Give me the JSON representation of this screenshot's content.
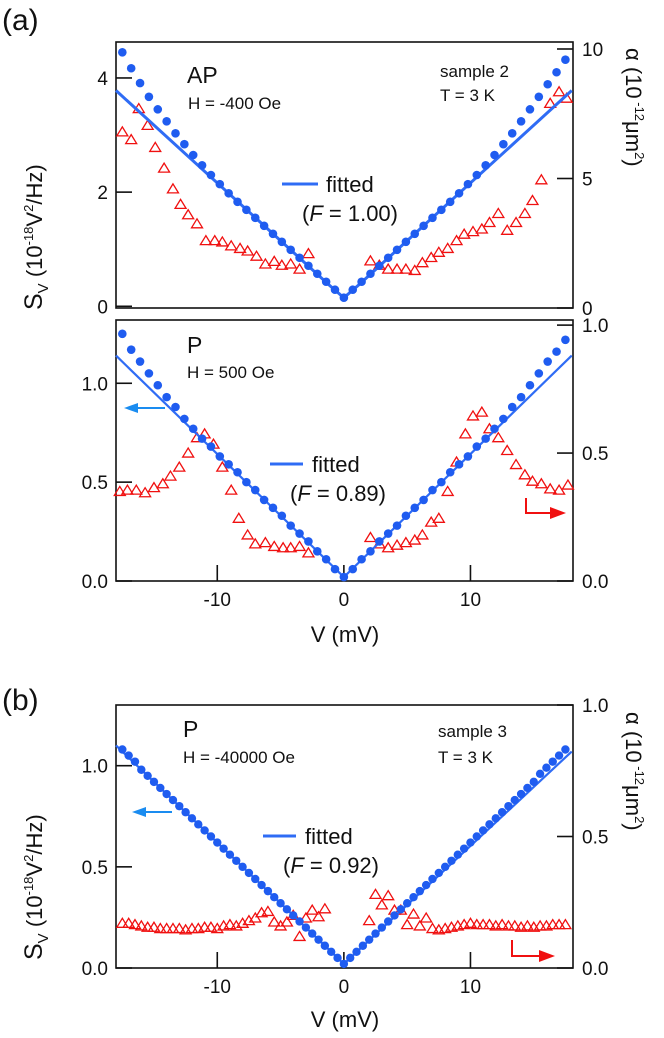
{
  "figure": {
    "tag_a": "(a)",
    "tag_b": "(b)",
    "xlabel": "V  (mV)",
    "ylabel_left": {
      "main": "S",
      "sub": "V",
      "open": "  (10",
      "sup": "-18",
      "mid": "V",
      "sup2": "2",
      "end": "/Hz)"
    },
    "ylabel_right": {
      "main": "α  (10",
      "sup": " -12",
      "mid": "μm",
      "sup2": "2",
      "end": ")"
    }
  },
  "colors": {
    "blue": "#1f5cf0",
    "fit": "#2f6cf5",
    "red": "#f01010",
    "arrow_blue": "#1a8cf0",
    "arrow_red": "#f01010"
  },
  "chart_data": [
    {
      "panel": "a-top",
      "type": "scatter",
      "label": "AP",
      "field": "H = -400 Oe",
      "sample": "sample 2",
      "temperature": "T = 3 K",
      "legend": {
        "label": "fitted",
        "factor_prefix": "(",
        "factor_symbol": "F",
        "factor_value": " = 1.00)"
      },
      "xlim": [
        -18,
        18.1
      ],
      "ylim_left": [
        -0.03,
        4.63
      ],
      "ylim_right": [
        0,
        10.27
      ],
      "yticks_left": [
        0,
        2,
        4
      ],
      "yticklabels_left": [
        "0",
        "2",
        "4"
      ],
      "yticks_right": [
        0,
        5,
        10
      ],
      "yticklabels_right": [
        "0",
        "5",
        "10"
      ],
      "xticks": [],
      "xticklabels": [],
      "blue_x": [
        -17.5,
        -16.8,
        -16.1,
        -15.4,
        -14.7,
        -14.0,
        -13.3,
        -12.6,
        -11.9,
        -11.2,
        -10.5,
        -9.8,
        -9.1,
        -8.4,
        -7.7,
        -7.0,
        -6.3,
        -5.6,
        -4.9,
        -4.2,
        -3.5,
        -2.8,
        -2.1,
        -1.4,
        -0.7,
        0,
        0.7,
        1.4,
        2.1,
        2.8,
        3.5,
        4.2,
        4.9,
        5.6,
        6.3,
        7.0,
        7.7,
        8.4,
        9.1,
        9.8,
        10.5,
        11.2,
        11.9,
        12.6,
        13.3,
        14.0,
        14.7,
        15.4,
        16.1,
        16.8,
        17.5
      ],
      "blue_S": [
        4.45,
        4.17,
        3.91,
        3.67,
        3.45,
        3.24,
        3.03,
        2.84,
        2.65,
        2.47,
        2.3,
        2.14,
        1.98,
        1.83,
        1.69,
        1.55,
        1.41,
        1.27,
        1.13,
        0.99,
        0.85,
        0.71,
        0.57,
        0.43,
        0.29,
        0.15,
        0.29,
        0.43,
        0.57,
        0.71,
        0.85,
        0.99,
        1.13,
        1.27,
        1.41,
        1.55,
        1.69,
        1.83,
        1.98,
        2.14,
        2.3,
        2.47,
        2.65,
        2.84,
        3.03,
        3.24,
        3.45,
        3.67,
        3.89,
        4.1,
        4.32
      ],
      "red_x": [
        -17.5,
        -16.8,
        -16.2,
        -15.5,
        -14.9,
        -14.2,
        -13.5,
        -12.9,
        -12.3,
        -11.6,
        -10.9,
        -10.2,
        -9.6,
        -8.9,
        -8.2,
        -7.6,
        -6.9,
        -6.2,
        -5.5,
        -4.9,
        -4.2,
        -3.5,
        -2.8,
        2.1,
        2.8,
        3.5,
        4.2,
        4.9,
        5.6,
        6.2,
        6.9,
        7.5,
        8.2,
        8.9,
        9.5,
        10.2,
        10.9,
        11.5,
        12.2,
        12.9,
        13.6,
        14.3,
        14.9,
        15.6,
        16.3,
        17.0,
        17.6
      ],
      "red_alpha": [
        6.8,
        6.5,
        7.7,
        7.05,
        6.2,
        5.4,
        4.6,
        4.0,
        3.6,
        3.25,
        2.6,
        2.6,
        2.55,
        2.4,
        2.3,
        2.2,
        2.0,
        1.7,
        1.8,
        1.65,
        1.7,
        1.5,
        2.1,
        1.82,
        1.65,
        1.5,
        1.5,
        1.5,
        1.45,
        1.75,
        1.95,
        2.15,
        2.3,
        2.6,
        2.85,
        2.95,
        3.05,
        3.3,
        3.65,
        3.0,
        3.3,
        3.65,
        4.15,
        4.95,
        7.9,
        8.35,
        8.1
      ],
      "fit_x": [
        -18,
        -1.2,
        0,
        1.2,
        18
      ],
      "fit_S": [
        3.78,
        0.38,
        0.15,
        0.38,
        3.78
      ],
      "arrows": false
    },
    {
      "panel": "a-bottom",
      "type": "scatter",
      "label": "P",
      "field": "H = 500 Oe",
      "legend": {
        "label": "fitted",
        "factor_prefix": "(",
        "factor_symbol": "F",
        "factor_value": " = 0.89)"
      },
      "xlim": [
        -18,
        18.1
      ],
      "ylim_left": [
        0,
        1.32
      ],
      "ylim_right": [
        0,
        1.02
      ],
      "yticks_left": [
        0,
        0.5,
        1.0
      ],
      "yticklabels_left": [
        "0.0",
        "0.5",
        "1.0"
      ],
      "yticks_right": [
        0,
        0.5,
        1.0
      ],
      "yticklabels_right": [
        "0.0",
        "0.5",
        "1.0"
      ],
      "xticks": [
        -10,
        0,
        10
      ],
      "xticklabels": [
        "-10",
        "0",
        "10"
      ],
      "blue_x": [
        -17.5,
        -16.8,
        -16.1,
        -15.4,
        -14.7,
        -14.0,
        -13.3,
        -12.6,
        -11.9,
        -11.2,
        -10.5,
        -9.8,
        -9.1,
        -8.4,
        -7.7,
        -7.0,
        -6.3,
        -5.6,
        -4.9,
        -4.2,
        -3.5,
        -2.8,
        -2.1,
        -1.4,
        -0.7,
        0,
        0.7,
        1.4,
        2.1,
        2.8,
        3.5,
        4.2,
        4.9,
        5.6,
        6.3,
        7.0,
        7.7,
        8.4,
        9.1,
        9.8,
        10.5,
        11.2,
        11.9,
        12.6,
        13.3,
        14.0,
        14.7,
        15.4,
        16.1,
        16.8,
        17.5
      ],
      "blue_S": [
        1.25,
        1.17,
        1.11,
        1.05,
        0.99,
        0.93,
        0.88,
        0.82,
        0.77,
        0.72,
        0.68,
        0.63,
        0.59,
        0.55,
        0.5,
        0.46,
        0.41,
        0.37,
        0.33,
        0.28,
        0.24,
        0.2,
        0.15,
        0.11,
        0.06,
        0.02,
        0.06,
        0.11,
        0.15,
        0.2,
        0.24,
        0.28,
        0.33,
        0.37,
        0.41,
        0.46,
        0.5,
        0.55,
        0.59,
        0.63,
        0.68,
        0.72,
        0.77,
        0.82,
        0.88,
        0.93,
        0.99,
        1.05,
        1.11,
        1.16,
        1.22
      ],
      "red_x": [
        -17.7,
        -17.1,
        -16.4,
        -15.7,
        -15.0,
        -14.3,
        -13.7,
        -13.0,
        -12.3,
        -11.6,
        -11.0,
        -10.3,
        -9.6,
        -8.9,
        -8.3,
        -7.6,
        -7.0,
        -6.2,
        -5.5,
        -4.8,
        -4.2,
        -3.5,
        -2.8,
        2.1,
        2.8,
        3.5,
        4.2,
        4.9,
        5.6,
        6.2,
        6.9,
        7.5,
        8.2,
        8.9,
        9.6,
        10.2,
        10.9,
        11.5,
        12.2,
        12.9,
        13.6,
        14.3,
        14.9,
        15.6,
        16.3,
        17.0,
        17.7
      ],
      "red_alpha": [
        0.35,
        0.355,
        0.355,
        0.345,
        0.365,
        0.38,
        0.41,
        0.445,
        0.5,
        0.56,
        0.575,
        0.535,
        0.445,
        0.355,
        0.245,
        0.18,
        0.145,
        0.15,
        0.135,
        0.13,
        0.13,
        0.135,
        0.11,
        0.17,
        0.145,
        0.13,
        0.14,
        0.15,
        0.16,
        0.18,
        0.23,
        0.245,
        0.35,
        0.465,
        0.575,
        0.645,
        0.66,
        0.595,
        0.56,
        0.51,
        0.455,
        0.415,
        0.39,
        0.38,
        0.36,
        0.355,
        0.375
      ],
      "fit_x": [
        -18,
        0,
        18
      ],
      "fit_S": [
        1.14,
        0.02,
        1.14
      ],
      "arrows": true
    },
    {
      "panel": "b",
      "type": "scatter",
      "label": "P",
      "field": "H = -40000 Oe",
      "sample": "sample 3",
      "temperature": "T = 3 K",
      "legend": {
        "label": "fitted",
        "factor_prefix": "(",
        "factor_symbol": "F",
        "factor_value": " = 0.92)"
      },
      "xlim": [
        -18,
        18.1
      ],
      "ylim_left": [
        0,
        1.3
      ],
      "ylim_right": [
        0,
        1.0
      ],
      "yticks_left": [
        0,
        0.5,
        1.0
      ],
      "yticklabels_left": [
        "0.0",
        "0.5",
        "1.0"
      ],
      "yticks_right": [
        0,
        0.5,
        1.0
      ],
      "yticklabels_right": [
        "0.0",
        "0.5",
        "1.0"
      ],
      "xticks": [
        -10,
        0,
        10
      ],
      "xticklabels": [
        "-10",
        "0",
        "10"
      ],
      "blue_x": [
        -17.5,
        -17,
        -16.5,
        -16,
        -15.5,
        -15,
        -14.5,
        -14,
        -13.5,
        -13,
        -12.5,
        -12,
        -11.5,
        -11,
        -10.5,
        -10,
        -9.5,
        -9,
        -8.5,
        -8,
        -7.5,
        -7,
        -6.5,
        -6,
        -5.5,
        -5,
        -4.5,
        -4,
        -3.5,
        -3,
        -2.5,
        -2,
        -1.5,
        -1,
        -0.5,
        0,
        0.5,
        1,
        1.5,
        2,
        2.5,
        3,
        3.5,
        4,
        4.5,
        5,
        5.5,
        6,
        6.5,
        7,
        7.5,
        8,
        8.5,
        9,
        9.5,
        10,
        10.5,
        11,
        11.5,
        12,
        12.5,
        13,
        13.5,
        14,
        14.5,
        15,
        15.5,
        16,
        16.5,
        17,
        17.5
      ],
      "blue_S": [
        1.08,
        1.05,
        1.02,
        0.98,
        0.95,
        0.92,
        0.89,
        0.86,
        0.83,
        0.8,
        0.77,
        0.74,
        0.71,
        0.68,
        0.65,
        0.62,
        0.59,
        0.56,
        0.53,
        0.5,
        0.47,
        0.44,
        0.41,
        0.38,
        0.35,
        0.32,
        0.29,
        0.26,
        0.23,
        0.2,
        0.17,
        0.14,
        0.11,
        0.08,
        0.05,
        0.02,
        0.05,
        0.08,
        0.11,
        0.14,
        0.17,
        0.2,
        0.23,
        0.26,
        0.29,
        0.32,
        0.35,
        0.38,
        0.41,
        0.44,
        0.47,
        0.5,
        0.53,
        0.56,
        0.59,
        0.62,
        0.65,
        0.68,
        0.71,
        0.74,
        0.77,
        0.8,
        0.83,
        0.86,
        0.89,
        0.92,
        0.96,
        0.99,
        1.02,
        1.05,
        1.08
      ],
      "red_x": [
        -17.5,
        -17,
        -16.5,
        -16,
        -15.5,
        -15,
        -14.5,
        -14,
        -13.5,
        -13,
        -12.5,
        -12,
        -11.5,
        -11,
        -10.5,
        -10,
        -9.5,
        -9,
        -8.5,
        -8,
        -7.5,
        -7,
        -6.5,
        -6,
        -5.5,
        -5,
        -4.5,
        -4,
        -3.5,
        -3,
        -2.5,
        -2,
        -1.5,
        2,
        2.5,
        3,
        3.5,
        4,
        4.5,
        5,
        5.5,
        6,
        6.5,
        7,
        7.5,
        8,
        8.5,
        9,
        9.5,
        10,
        10.5,
        11,
        11.5,
        12,
        12.5,
        13,
        13.5,
        14,
        14.5,
        15,
        15.5,
        16,
        16.5,
        17,
        17.5
      ],
      "red_alpha": [
        0.17,
        0.17,
        0.165,
        0.16,
        0.155,
        0.155,
        0.15,
        0.15,
        0.15,
        0.15,
        0.145,
        0.15,
        0.15,
        0.155,
        0.155,
        0.15,
        0.16,
        0.165,
        0.16,
        0.17,
        0.18,
        0.19,
        0.21,
        0.215,
        0.175,
        0.16,
        0.175,
        0.2,
        0.12,
        0.19,
        0.22,
        0.195,
        0.225,
        0.18,
        0.28,
        0.24,
        0.275,
        0.22,
        0.22,
        0.165,
        0.205,
        0.16,
        0.19,
        0.15,
        0.145,
        0.15,
        0.155,
        0.16,
        0.165,
        0.17,
        0.165,
        0.165,
        0.165,
        0.16,
        0.165,
        0.16,
        0.16,
        0.155,
        0.16,
        0.155,
        0.16,
        0.16,
        0.165,
        0.165,
        0.165
      ],
      "fit_x": [
        -18,
        0,
        18
      ],
      "fit_S": [
        1.1,
        0.02,
        1.07
      ],
      "arrows": true
    }
  ]
}
